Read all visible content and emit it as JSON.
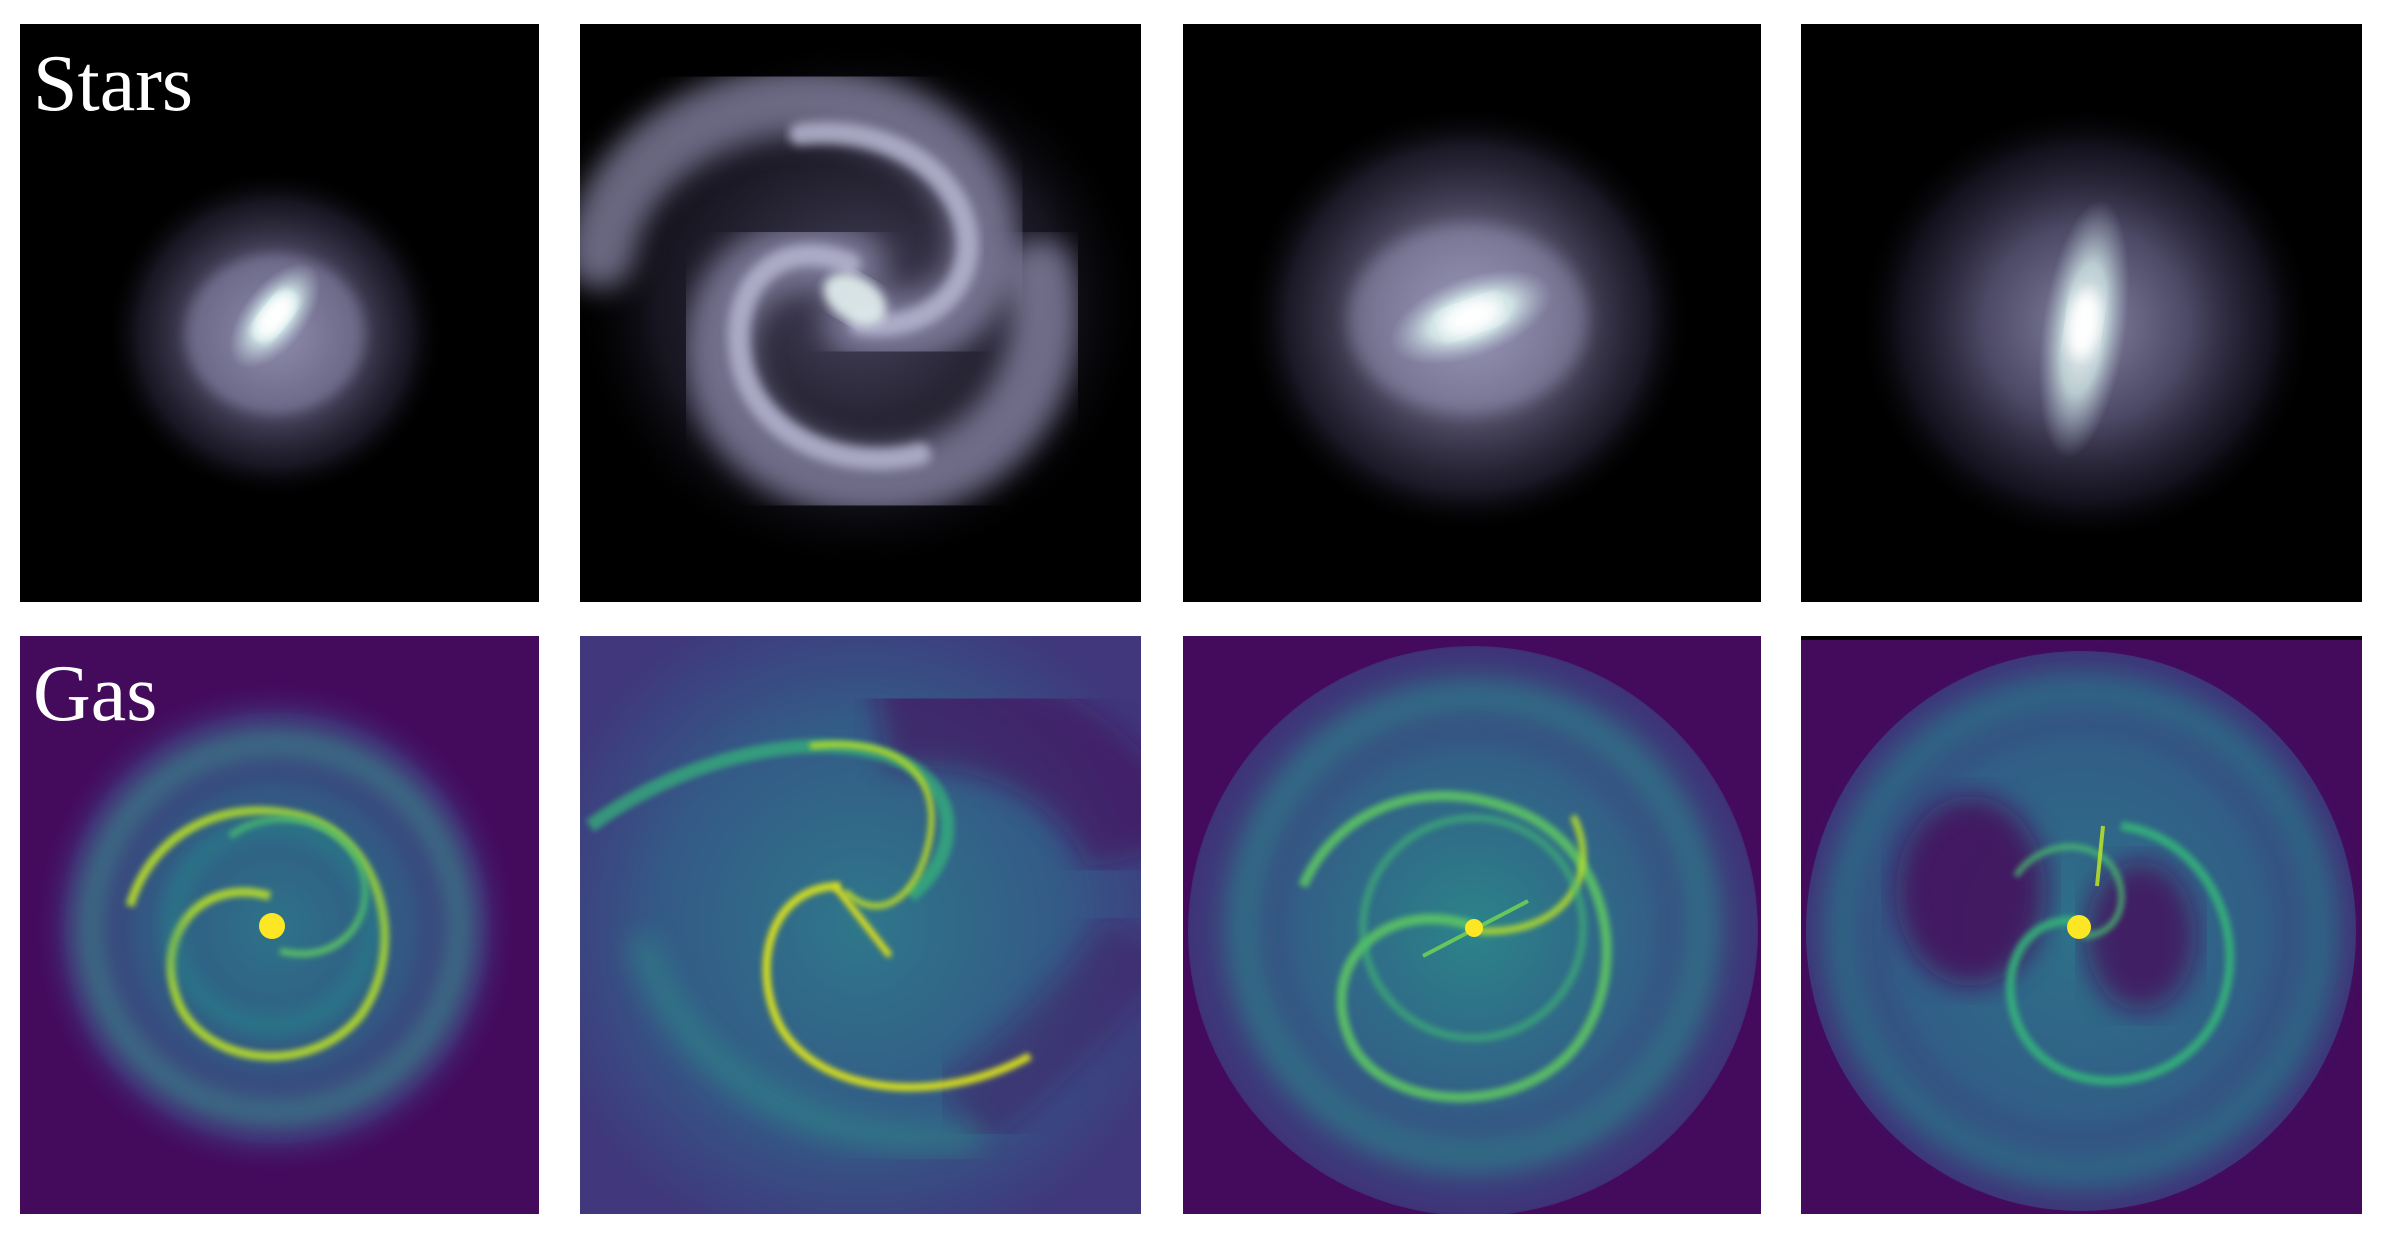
{
  "figure": {
    "rows": [
      {
        "label": "Stars",
        "colormap": "bone-purple",
        "panels": 4
      },
      {
        "label": "Gas",
        "colormap": "viridis",
        "panels": 4
      }
    ]
  },
  "colors": {
    "stars_background": "#000000",
    "stars_glow": "#c8c8e0",
    "gas_background": "#440a5c",
    "gas_mid": "#2d8a8c",
    "gas_high": "#fde725"
  }
}
